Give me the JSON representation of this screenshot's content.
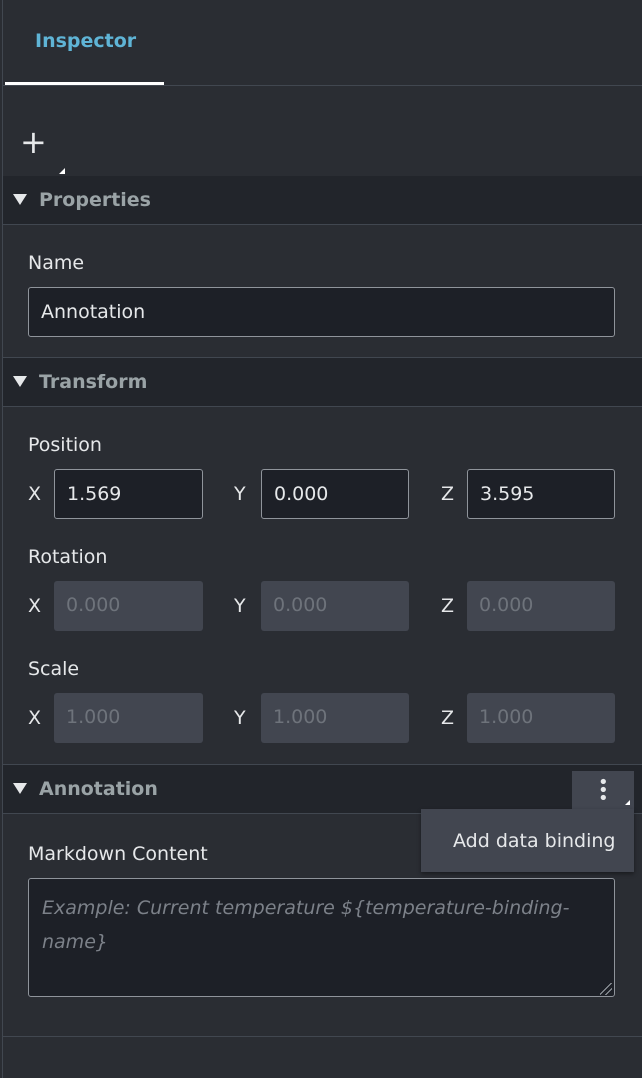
{
  "tabs": [
    {
      "label": "Inspector",
      "active": true
    }
  ],
  "toolbar": {
    "add_icon": "plus-icon"
  },
  "properties": {
    "title": "Properties",
    "name_label": "Name",
    "name_value": "Annotation"
  },
  "transform": {
    "title": "Transform",
    "position": {
      "label": "Position",
      "x": "1.569",
      "y": "0.000",
      "z": "3.595"
    },
    "rotation": {
      "label": "Rotation",
      "x": "0.000",
      "y": "0.000",
      "z": "0.000"
    },
    "scale": {
      "label": "Scale",
      "x": "1.000",
      "y": "1.000",
      "z": "1.000"
    },
    "axes": {
      "x": "X",
      "y": "Y",
      "z": "Z"
    }
  },
  "annotation": {
    "title": "Annotation",
    "menu_item": "Add data binding",
    "markdown_label": "Markdown Content",
    "markdown_placeholder": "Example: Current temperature ${temperature-binding-name}",
    "markdown_value": ""
  },
  "colors": {
    "accent": "#5fb4d6",
    "background": "#2a2d33",
    "section_header": "#22252b"
  }
}
